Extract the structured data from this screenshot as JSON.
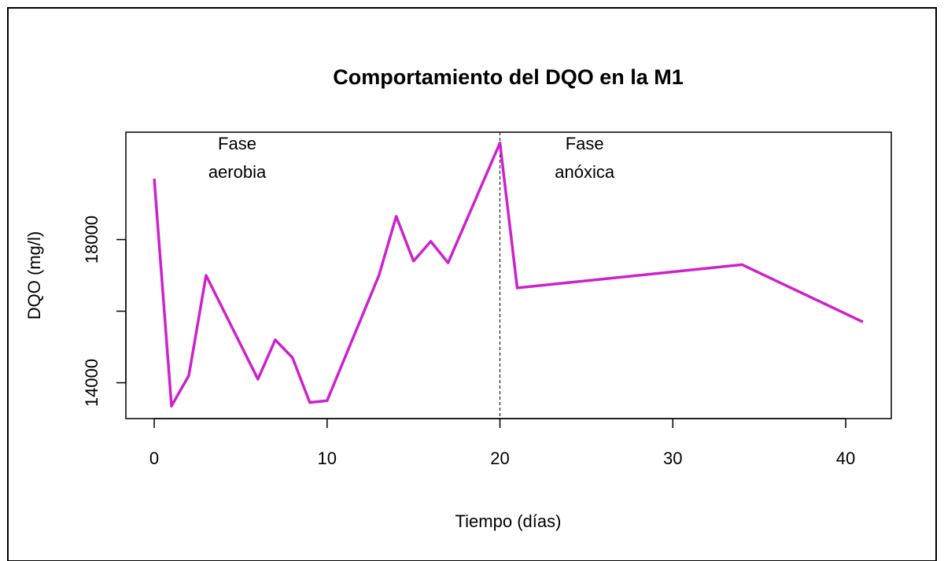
{
  "chart_data": {
    "type": "line",
    "title": "Comportamiento del DQO en la M1",
    "x_label": "Tiempo (días)",
    "y_label": "DQO (mg/l)",
    "x": [
      0,
      1,
      2,
      3,
      6,
      7,
      8,
      9,
      10,
      13,
      14,
      15,
      16,
      17,
      20,
      21,
      34,
      41
    ],
    "series": [
      {
        "name": "DQO",
        "color": "#cc22cc",
        "values": [
          19700,
          13350,
          14200,
          17000,
          14100,
          15200,
          14700,
          13450,
          13500,
          17000,
          18650,
          17400,
          17950,
          17350,
          20700,
          16650,
          17300,
          15700
        ]
      }
    ],
    "xlim": [
      -1.64,
      42.64
    ],
    "xticks": [
      0,
      10,
      20,
      30,
      40
    ],
    "ylim": [
      13000,
      21000
    ],
    "yticks": [
      14000,
      {
        "value": 16000
      },
      18000
    ],
    "vline": {
      "x": 20,
      "style": "dashed"
    },
    "annotations": [
      {
        "text": [
          "Fase",
          "aerobia"
        ],
        "x": 4.8,
        "y": 20250
      },
      {
        "text": [
          "Fase",
          "anóxica"
        ],
        "x": 24.9,
        "y": 20250
      }
    ]
  }
}
